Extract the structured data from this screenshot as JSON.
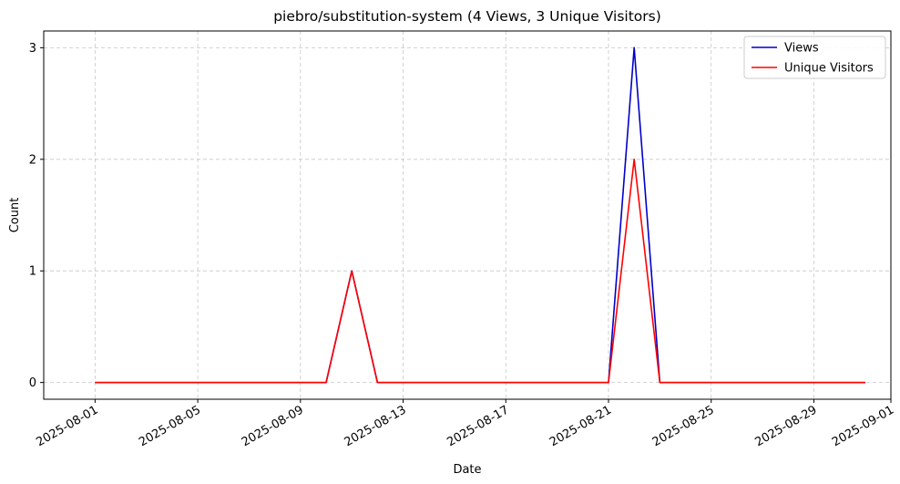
{
  "chart_data": {
    "type": "line",
    "title": "piebro/substitution-system (4 Views, 3 Unique Visitors)",
    "xlabel": "Date",
    "ylabel": "Count",
    "x": [
      "2025-08-01",
      "2025-08-02",
      "2025-08-03",
      "2025-08-04",
      "2025-08-05",
      "2025-08-06",
      "2025-08-07",
      "2025-08-08",
      "2025-08-09",
      "2025-08-10",
      "2025-08-11",
      "2025-08-12",
      "2025-08-13",
      "2025-08-14",
      "2025-08-15",
      "2025-08-16",
      "2025-08-17",
      "2025-08-18",
      "2025-08-19",
      "2025-08-20",
      "2025-08-21",
      "2025-08-22",
      "2025-08-23",
      "2025-08-24",
      "2025-08-25",
      "2025-08-26",
      "2025-08-27",
      "2025-08-28",
      "2025-08-29",
      "2025-08-30",
      "2025-08-31"
    ],
    "series": [
      {
        "name": "Views",
        "color": "#0000cc",
        "values": [
          0,
          0,
          0,
          0,
          0,
          0,
          0,
          0,
          0,
          0,
          1,
          0,
          0,
          0,
          0,
          0,
          0,
          0,
          0,
          0,
          0,
          3,
          0,
          0,
          0,
          0,
          0,
          0,
          0,
          0,
          0
        ]
      },
      {
        "name": "Unique Visitors",
        "color": "#ff0000",
        "values": [
          0,
          0,
          0,
          0,
          0,
          0,
          0,
          0,
          0,
          0,
          1,
          0,
          0,
          0,
          0,
          0,
          0,
          0,
          0,
          0,
          0,
          2,
          0,
          0,
          0,
          0,
          0,
          0,
          0,
          0,
          0
        ]
      }
    ],
    "xlim": [
      "2025-07-30",
      "2025-09-01"
    ],
    "ylim": [
      -0.15,
      3.15
    ],
    "xticks": [
      "2025-08-01",
      "2025-08-05",
      "2025-08-09",
      "2025-08-13",
      "2025-08-17",
      "2025-08-21",
      "2025-08-25",
      "2025-08-29",
      "2025-09-01"
    ],
    "yticks": [
      "0",
      "1",
      "2",
      "3"
    ],
    "grid": true,
    "legend_position": "top-right"
  }
}
